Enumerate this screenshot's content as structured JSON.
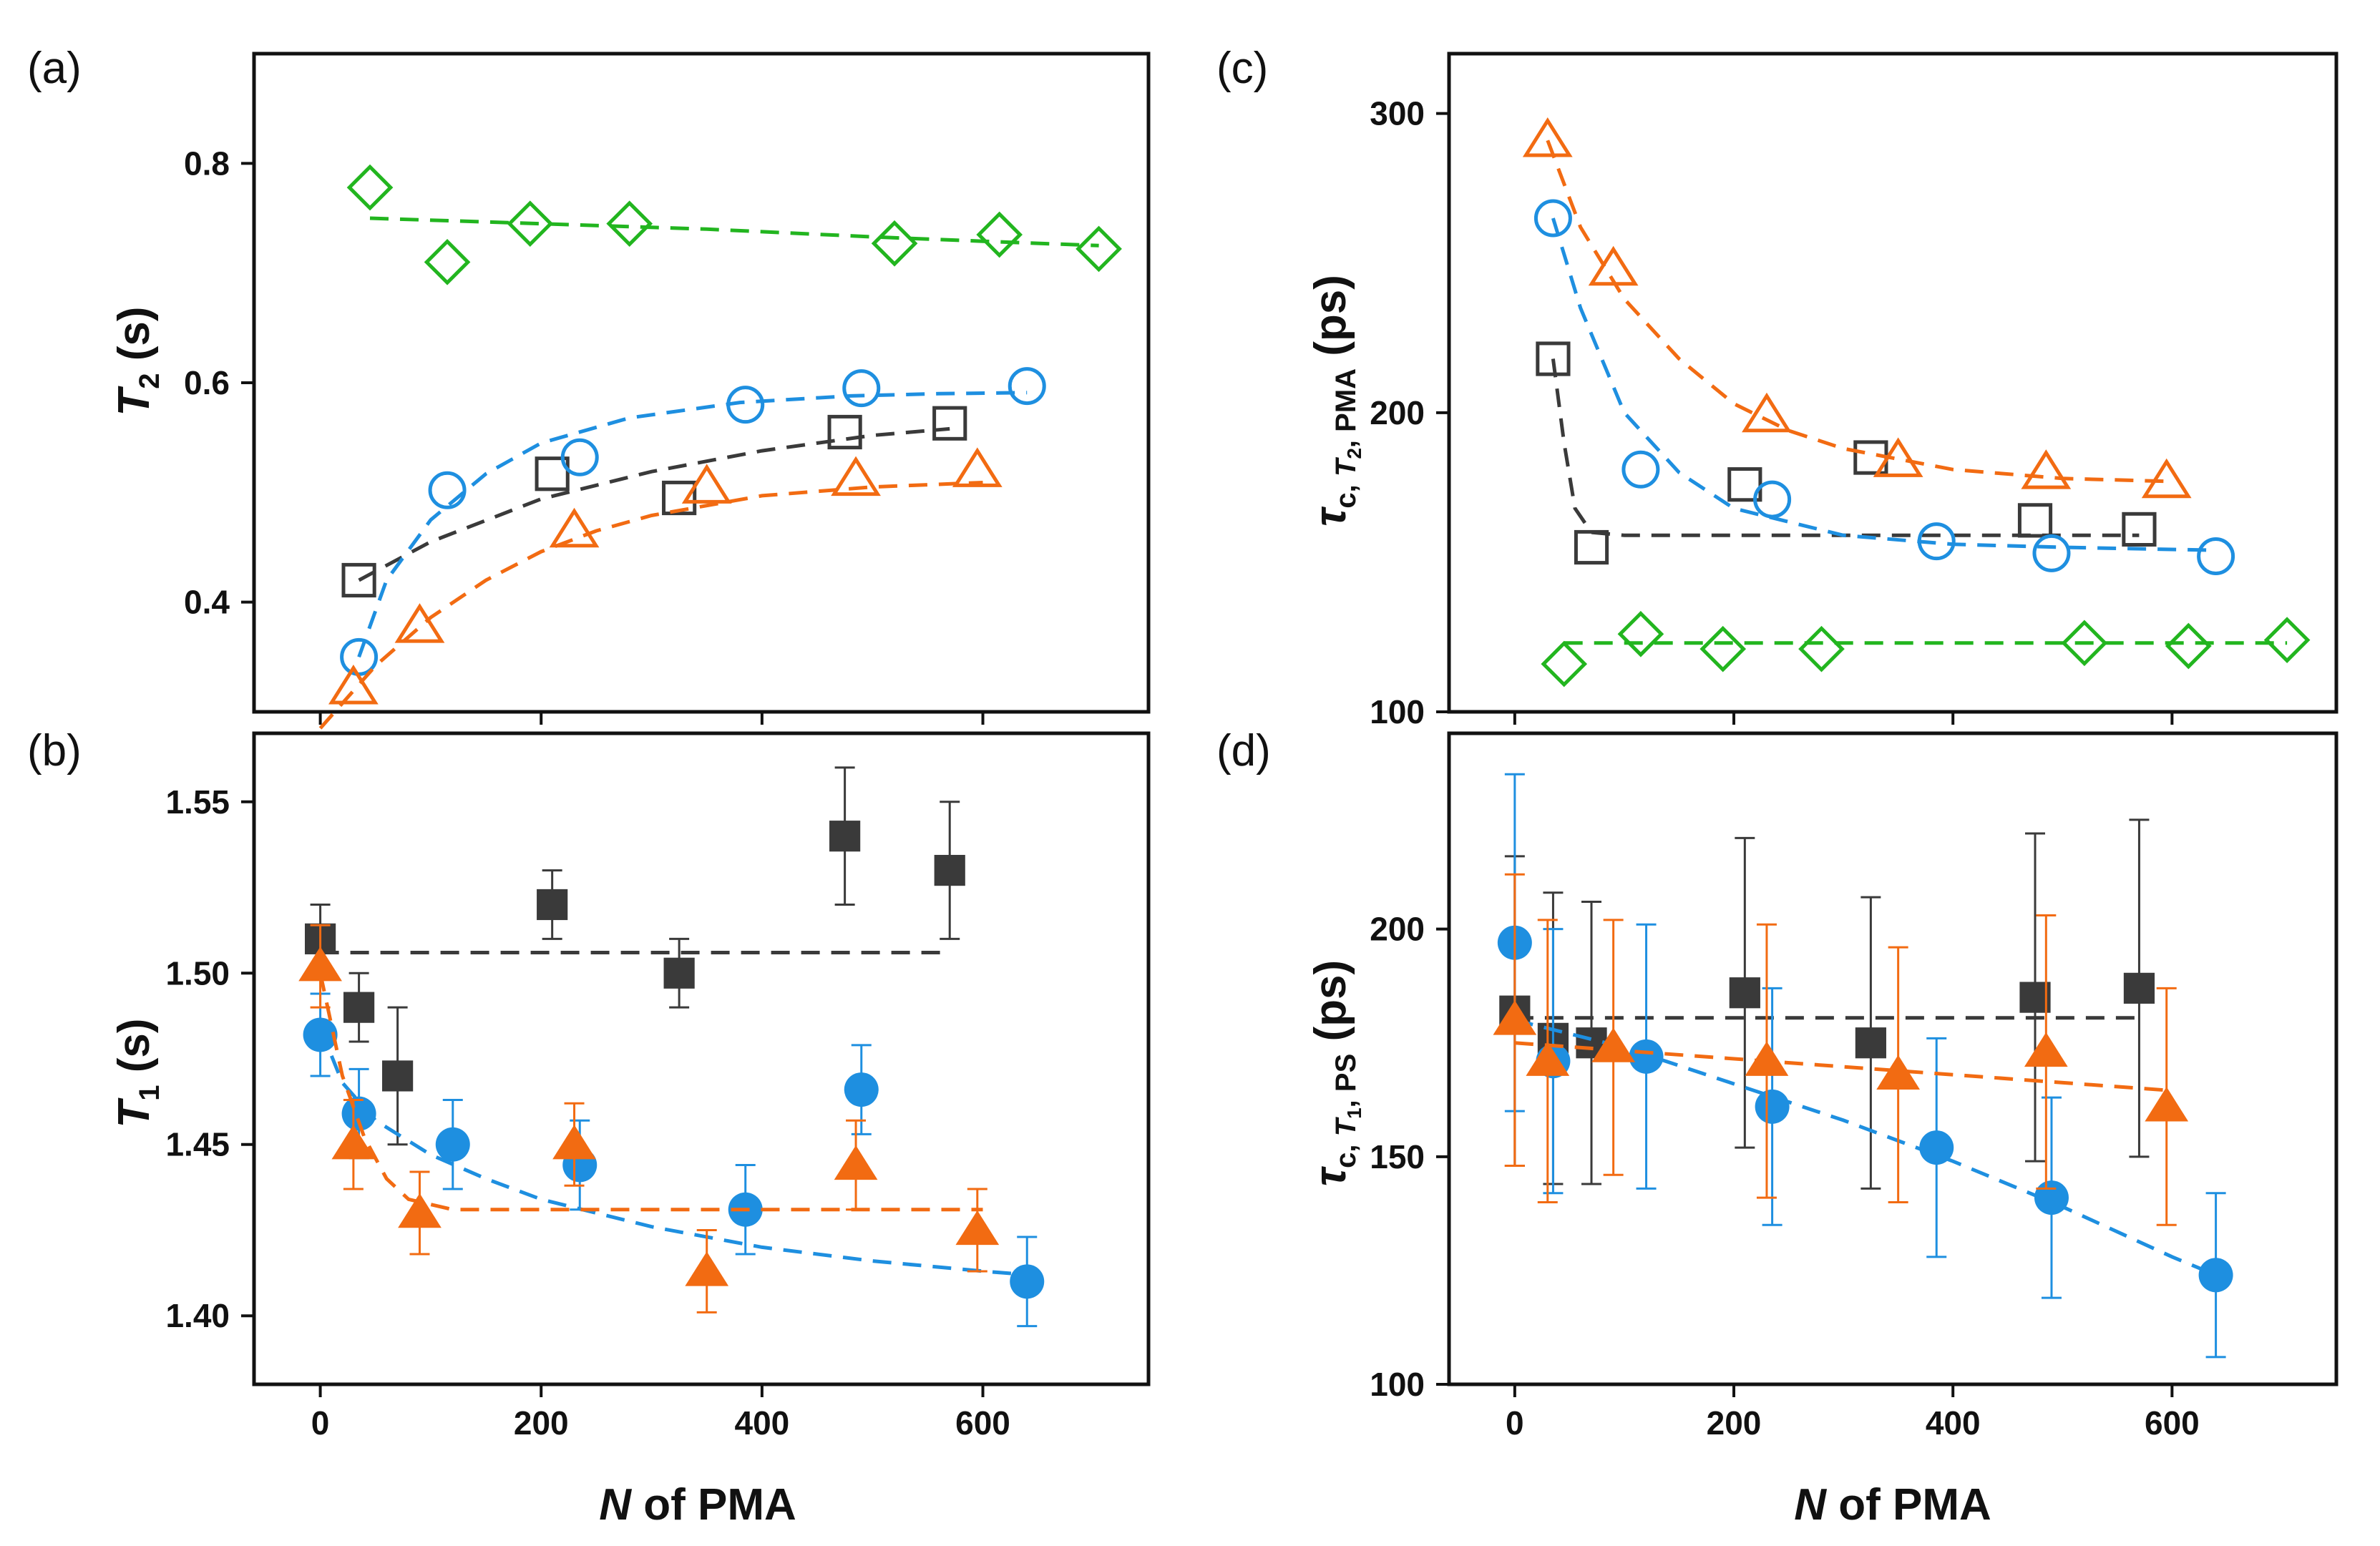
{
  "colors": {
    "black": "#3a3a3a",
    "blue": "#1e8fe0",
    "orange": "#f26b12",
    "green": "#22b51f",
    "axis": "#111111"
  },
  "labels": {
    "panel_a": "(a)",
    "panel_b": "(b)",
    "panel_c": "(c)",
    "panel_d": "(d)",
    "xlabel_italic": "N",
    "xlabel_rest": " of PMA",
    "a_ylabel_main": "T",
    "a_ylabel_sub": "2",
    "a_ylabel_unit": " (s)",
    "b_ylabel_main": "T",
    "b_ylabel_sub": "1",
    "b_ylabel_unit": " (s)",
    "c_ylabel_tau": "τ",
    "c_ylabel_sub_c": "c, ",
    "c_ylabel_sub_T": "T",
    "c_ylabel_sub_T2": "2",
    "c_ylabel_sub_rest": ", PMA",
    "c_ylabel_unit": " (ps)",
    "d_ylabel_tau": "τ",
    "d_ylabel_sub_c": "c, ",
    "d_ylabel_sub_T": "T",
    "d_ylabel_sub_T1": "1",
    "d_ylabel_sub_rest": ", PS",
    "d_ylabel_unit": " (ps)"
  },
  "chart_data": [
    {
      "panel": "a",
      "type": "scatter",
      "title": "",
      "xlabel": "N of PMA",
      "ylabel": "T2 (s)",
      "xlim": [
        -60,
        750
      ],
      "ylim": [
        0.3,
        0.9
      ],
      "xticks": [
        0,
        200,
        400,
        600
      ],
      "yticks": [
        0.4,
        0.6,
        0.8
      ],
      "yticklabels": [
        "0.4",
        "0.6",
        "0.8"
      ],
      "show_xticklabels": false,
      "series": [
        {
          "name": "black",
          "color_key": "black",
          "marker": "square",
          "filled": false,
          "x": [
            35,
            210,
            325,
            475,
            570
          ],
          "y": [
            0.42,
            0.517,
            0.495,
            0.555,
            0.563
          ],
          "fit": [
            [
              35,
              0.42
            ],
            [
              100,
              0.455
            ],
            [
              200,
              0.494
            ],
            [
              300,
              0.519
            ],
            [
              400,
              0.538
            ],
            [
              500,
              0.552
            ],
            [
              570,
              0.558
            ]
          ]
        },
        {
          "name": "blue",
          "color_key": "blue",
          "marker": "circle",
          "filled": false,
          "x": [
            35,
            115,
            235,
            385,
            490,
            640
          ],
          "y": [
            0.35,
            0.502,
            0.532,
            0.58,
            0.595,
            0.597
          ],
          "fit": [
            [
              35,
              0.35
            ],
            [
              60,
              0.42
            ],
            [
              100,
              0.475
            ],
            [
              150,
              0.517
            ],
            [
              200,
              0.545
            ],
            [
              280,
              0.568
            ],
            [
              380,
              0.582
            ],
            [
              480,
              0.588
            ],
            [
              560,
              0.59
            ],
            [
              640,
              0.591
            ]
          ]
        },
        {
          "name": "orange",
          "color_key": "orange",
          "marker": "triangle",
          "filled": false,
          "x": [
            30,
            90,
            230,
            350,
            485,
            595
          ],
          "y": [
            0.322,
            0.378,
            0.465,
            0.505,
            0.512,
            0.52
          ],
          "fit": [
            [
              0,
              0.285
            ],
            [
              50,
              0.342
            ],
            [
              100,
              0.386
            ],
            [
              150,
              0.42
            ],
            [
              200,
              0.446
            ],
            [
              250,
              0.465
            ],
            [
              300,
              0.479
            ],
            [
              400,
              0.497
            ],
            [
              500,
              0.505
            ],
            [
              600,
              0.509
            ]
          ]
        },
        {
          "name": "green",
          "color_key": "green",
          "marker": "diamond",
          "filled": false,
          "x": [
            45,
            115,
            190,
            280,
            520,
            615,
            705
          ],
          "y": [
            0.778,
            0.71,
            0.745,
            0.745,
            0.727,
            0.735,
            0.722
          ],
          "fit": [
            [
              45,
              0.75
            ],
            [
              200,
              0.745
            ],
            [
              350,
              0.74
            ],
            [
              500,
              0.733
            ],
            [
              600,
              0.729
            ],
            [
              705,
              0.725
            ]
          ]
        }
      ]
    },
    {
      "panel": "b",
      "type": "scatter",
      "title": "",
      "xlabel": "N of PMA",
      "ylabel": "T1 (s)",
      "xlim": [
        -60,
        750
      ],
      "ylim": [
        1.38,
        1.57
      ],
      "xticks": [
        0,
        200,
        400,
        600
      ],
      "xticklabels": [
        "0",
        "200",
        "400",
        "600"
      ],
      "yticks": [
        1.4,
        1.45,
        1.5,
        1.55
      ],
      "yticklabels": [
        "1.40",
        "1.45",
        "1.50",
        "1.55"
      ],
      "series": [
        {
          "name": "black",
          "color_key": "black",
          "marker": "square",
          "filled": true,
          "x": [
            0,
            35,
            70,
            210,
            325,
            475,
            570
          ],
          "y": [
            1.51,
            1.49,
            1.47,
            1.52,
            1.5,
            1.54,
            1.53
          ],
          "err": [
            0.01,
            0.01,
            0.02,
            0.01,
            0.01,
            0.02,
            0.02
          ],
          "fit": [
            [
              0,
              1.506
            ],
            [
              570,
              1.506
            ]
          ]
        },
        {
          "name": "blue",
          "color_key": "blue",
          "marker": "circle",
          "filled": true,
          "x": [
            0,
            35,
            120,
            235,
            385,
            490,
            640
          ],
          "y": [
            1.482,
            1.459,
            1.45,
            1.444,
            1.431,
            1.466,
            1.41
          ],
          "err": [
            0.012,
            0.013,
            0.013,
            0.013,
            0.013,
            0.013,
            0.013
          ],
          "fit": [
            [
              0,
              1.484
            ],
            [
              20,
              1.468
            ],
            [
              50,
              1.457
            ],
            [
              100,
              1.447
            ],
            [
              150,
              1.44
            ],
            [
              200,
              1.434
            ],
            [
              300,
              1.426
            ],
            [
              400,
              1.42
            ],
            [
              500,
              1.416
            ],
            [
              600,
              1.413
            ],
            [
              640,
              1.412
            ]
          ]
        },
        {
          "name": "orange",
          "color_key": "orange",
          "marker": "triangle",
          "filled": true,
          "x": [
            0,
            30,
            90,
            230,
            350,
            485,
            595
          ],
          "y": [
            1.502,
            1.45,
            1.43,
            1.45,
            1.413,
            1.444,
            1.425
          ],
          "err": [
            0.012,
            0.013,
            0.012,
            0.012,
            0.012,
            0.013,
            0.012
          ],
          "fit": [
            [
              0,
              1.5
            ],
            [
              20,
              1.47
            ],
            [
              40,
              1.452
            ],
            [
              60,
              1.44
            ],
            [
              80,
              1.434
            ],
            [
              120,
              1.431
            ],
            [
              200,
              1.431
            ],
            [
              600,
              1.431
            ]
          ]
        }
      ]
    },
    {
      "panel": "c",
      "type": "scatter",
      "title": "",
      "xlabel": "N of PMA",
      "ylabel": "τc, T2, PMA (ps)",
      "xlim": [
        -60,
        750
      ],
      "ylim": [
        100,
        320
      ],
      "xticks": [
        0,
        200,
        400,
        600
      ],
      "yticks": [
        100,
        200,
        300
      ],
      "yticklabels": [
        "100",
        "200",
        "300"
      ],
      "show_xticklabels": false,
      "series": [
        {
          "name": "black",
          "color_key": "black",
          "marker": "square",
          "filled": false,
          "x": [
            35,
            70,
            210,
            325,
            475,
            570
          ],
          "y": [
            218,
            155,
            176,
            185,
            164,
            161
          ],
          "fit": [
            [
              35,
              218
            ],
            [
              45,
              190
            ],
            [
              55,
              168
            ],
            [
              70,
              160
            ],
            [
              100,
              159
            ],
            [
              570,
              159
            ]
          ]
        },
        {
          "name": "blue",
          "color_key": "blue",
          "marker": "circle",
          "filled": false,
          "x": [
            35,
            115,
            235,
            385,
            490,
            640
          ],
          "y": [
            265,
            181,
            171,
            157,
            153,
            152
          ],
          "fit": [
            [
              35,
              265
            ],
            [
              60,
              235
            ],
            [
              100,
              200
            ],
            [
              150,
              180
            ],
            [
              200,
              168
            ],
            [
              300,
              159
            ],
            [
              400,
              156
            ],
            [
              500,
              155
            ],
            [
              640,
              154
            ]
          ]
        },
        {
          "name": "orange",
          "color_key": "orange",
          "marker": "triangle",
          "filled": false,
          "x": [
            30,
            90,
            230,
            350,
            485,
            595
          ],
          "y": [
            291,
            248,
            199,
            184,
            180,
            177
          ],
          "fit": [
            [
              30,
              291
            ],
            [
              60,
              262
            ],
            [
              100,
              238
            ],
            [
              150,
              218
            ],
            [
              200,
              203
            ],
            [
              250,
              194
            ],
            [
              300,
              188
            ],
            [
              400,
              181
            ],
            [
              500,
              178
            ],
            [
              600,
              177
            ]
          ]
        },
        {
          "name": "green",
          "color_key": "green",
          "marker": "diamond",
          "filled": false,
          "x": [
            45,
            115,
            190,
            280,
            520,
            615,
            705
          ],
          "y": [
            116,
            126,
            121,
            121,
            123,
            122,
            124
          ],
          "fit": [
            [
              45,
              123
            ],
            [
              705,
              123
            ]
          ]
        }
      ]
    },
    {
      "panel": "d",
      "type": "scatter",
      "title": "",
      "xlabel": "N of PMA",
      "ylabel": "τc, T1, PS (ps)",
      "xlim": [
        -60,
        750
      ],
      "ylim": [
        100,
        243
      ],
      "xticks": [
        0,
        200,
        400,
        600
      ],
      "xticklabels": [
        "0",
        "200",
        "400",
        "600"
      ],
      "yticks": [
        100,
        150,
        200
      ],
      "yticklabels": [
        "100",
        "150",
        "200"
      ],
      "series": [
        {
          "name": "black",
          "color_key": "black",
          "marker": "square",
          "filled": true,
          "x": [
            0,
            35,
            70,
            210,
            325,
            475,
            570
          ],
          "y": [
            182,
            176,
            175,
            186,
            175,
            185,
            187
          ],
          "err": [
            34,
            32,
            31,
            34,
            32,
            36,
            37
          ],
          "fit": [
            [
              0,
              180.5
            ],
            [
              570,
              180.5
            ]
          ]
        },
        {
          "name": "blue",
          "color_key": "blue",
          "marker": "circle",
          "filled": true,
          "x": [
            0,
            35,
            120,
            235,
            385,
            490,
            640
          ],
          "y": [
            197,
            171,
            172,
            161,
            152,
            141,
            124
          ],
          "err": [
            37,
            29,
            29,
            26,
            24,
            22,
            18
          ],
          "fit": [
            [
              0,
              180
            ],
            [
              100,
              174
            ],
            [
              200,
              166
            ],
            [
              300,
              158
            ],
            [
              400,
              149
            ],
            [
              500,
              139
            ],
            [
              600,
              128
            ],
            [
              640,
              124
            ]
          ]
        },
        {
          "name": "orange",
          "color_key": "orange",
          "marker": "triangle",
          "filled": true,
          "x": [
            0,
            30,
            90,
            230,
            350,
            485,
            595
          ],
          "y": [
            180,
            171,
            174,
            171,
            168,
            173,
            161
          ],
          "err": [
            32,
            31,
            28,
            30,
            28,
            30,
            26
          ],
          "fit": [
            [
              0,
              175
            ],
            [
              600,
              164.5
            ]
          ]
        }
      ]
    }
  ]
}
